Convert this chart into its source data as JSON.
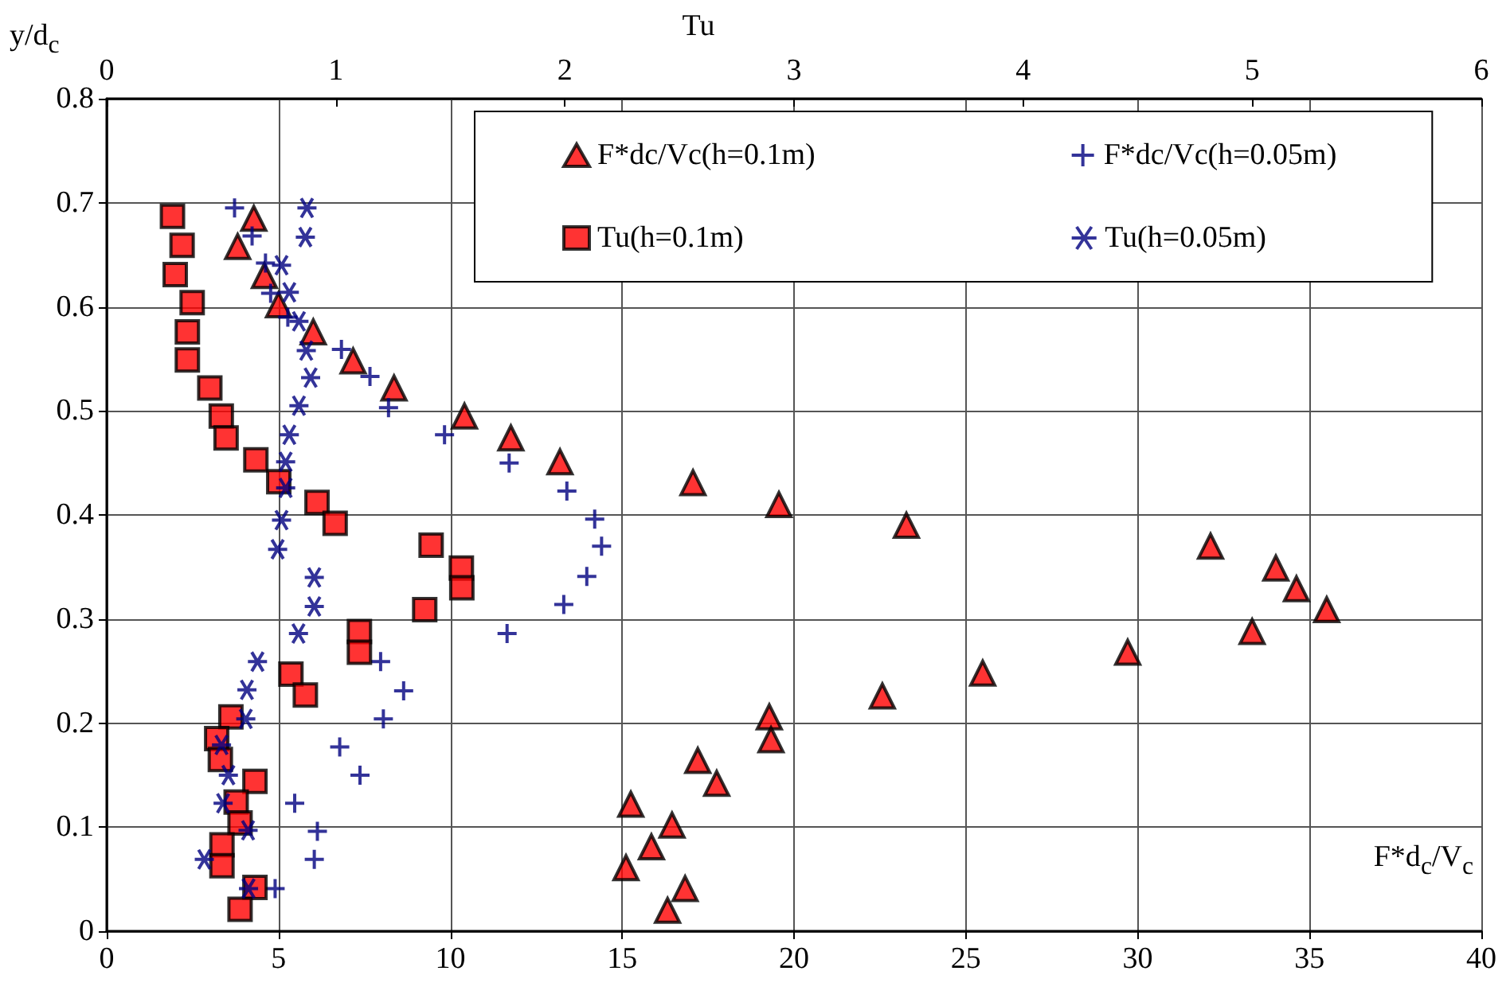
{
  "chart_data": {
    "type": "scatter",
    "xlabel": "F*d$_{c}$/V$_{c}$",
    "ylabel": "y/d$_{c}$",
    "x2label": "Tu",
    "xlim": [
      0,
      40
    ],
    "xticks": [
      0,
      5,
      10,
      15,
      20,
      25,
      30,
      35,
      40
    ],
    "x2lim": [
      0,
      6
    ],
    "x2ticks": [
      0,
      1,
      2,
      3,
      4,
      5,
      6
    ],
    "ylim": [
      0,
      0.8
    ],
    "yticks": [
      0,
      0.1,
      0.2,
      0.3,
      0.4,
      0.5,
      0.6,
      0.7,
      0.8
    ],
    "grid": true,
    "legend": "top right",
    "series": [
      {
        "name": "F*dc/Vc(h=0.1m)",
        "color": "#ff0000",
        "marker": "triangle",
        "x": [
          4.28,
          3.81,
          4.59,
          5.0,
          6.01,
          7.17,
          8.36,
          10.41,
          11.76,
          13.19,
          17.06,
          19.56,
          23.27,
          32.12,
          34.02,
          34.62,
          35.5,
          33.33,
          29.71,
          25.49,
          22.57,
          19.28,
          19.33,
          17.2,
          17.75,
          15.25,
          16.45,
          15.85,
          15.11,
          16.83,
          16.32
        ],
        "values": [
          0.685,
          0.658,
          0.63,
          0.602,
          0.576,
          0.548,
          0.522,
          0.495,
          0.474,
          0.451,
          0.431,
          0.41,
          0.39,
          0.37,
          0.349,
          0.329,
          0.309,
          0.288,
          0.268,
          0.248,
          0.226,
          0.206,
          0.184,
          0.164,
          0.142,
          0.122,
          0.102,
          0.081,
          0.061,
          0.041,
          0.02
        ]
      },
      {
        "name": "F*dc/Vc(h=0.05m)",
        "color": "#000080",
        "marker": "cross",
        "x": [
          3.72,
          4.23,
          4.62,
          4.77,
          5.27,
          6.83,
          7.66,
          8.2,
          9.83,
          11.71,
          13.39,
          14.2,
          14.4,
          13.97,
          13.3,
          11.65,
          7.97,
          8.64,
          8.05,
          6.78,
          7.37,
          5.47,
          6.13,
          6.04,
          4.9
        ],
        "values": [
          0.695,
          0.668,
          0.642,
          0.613,
          0.59,
          0.559,
          0.533,
          0.503,
          0.477,
          0.45,
          0.423,
          0.396,
          0.37,
          0.341,
          0.314,
          0.286,
          0.259,
          0.231,
          0.204,
          0.177,
          0.15,
          0.123,
          0.096,
          0.069,
          0.041
        ]
      },
      {
        "name": "Tu(h=0.1m)",
        "color": "#ff0000",
        "marker": "square",
        "axis": "x2",
        "x": [
          0.287,
          0.329,
          0.299,
          0.373,
          0.352,
          0.352,
          0.45,
          0.5,
          0.521,
          0.651,
          0.751,
          0.918,
          0.997,
          1.416,
          1.548,
          1.55,
          1.388,
          1.103,
          1.103,
          0.804,
          0.867,
          0.542,
          0.48,
          0.496,
          0.647,
          0.565,
          0.582,
          0.503,
          0.503,
          0.647,
          0.582
        ],
        "values": [
          0.687,
          0.659,
          0.631,
          0.604,
          0.576,
          0.549,
          0.522,
          0.495,
          0.474,
          0.453,
          0.432,
          0.412,
          0.392,
          0.371,
          0.349,
          0.33,
          0.309,
          0.288,
          0.268,
          0.247,
          0.227,
          0.206,
          0.185,
          0.165,
          0.144,
          0.124,
          0.104,
          0.083,
          0.063,
          0.042,
          0.021
        ]
      },
      {
        "name": "Tu(h=0.05m)",
        "color": "#000080",
        "marker": "cross",
        "axis": "x2",
        "x": [
          0.874,
          0.867,
          0.763,
          0.797,
          0.839,
          0.871,
          0.89,
          0.839,
          0.797,
          0.781,
          0.781,
          0.763,
          0.746,
          0.906,
          0.906,
          0.837,
          0.658,
          0.612,
          0.607,
          0.501,
          0.531,
          0.508,
          0.617,
          0.426,
          0.619
        ],
        "values": [
          0.695,
          0.667,
          0.64,
          0.614,
          0.586,
          0.558,
          0.532,
          0.505,
          0.477,
          0.451,
          0.426,
          0.395,
          0.367,
          0.34,
          0.312,
          0.286,
          0.259,
          0.232,
          0.204,
          0.179,
          0.15,
          0.123,
          0.097,
          0.069,
          0.041
        ]
      }
    ]
  }
}
